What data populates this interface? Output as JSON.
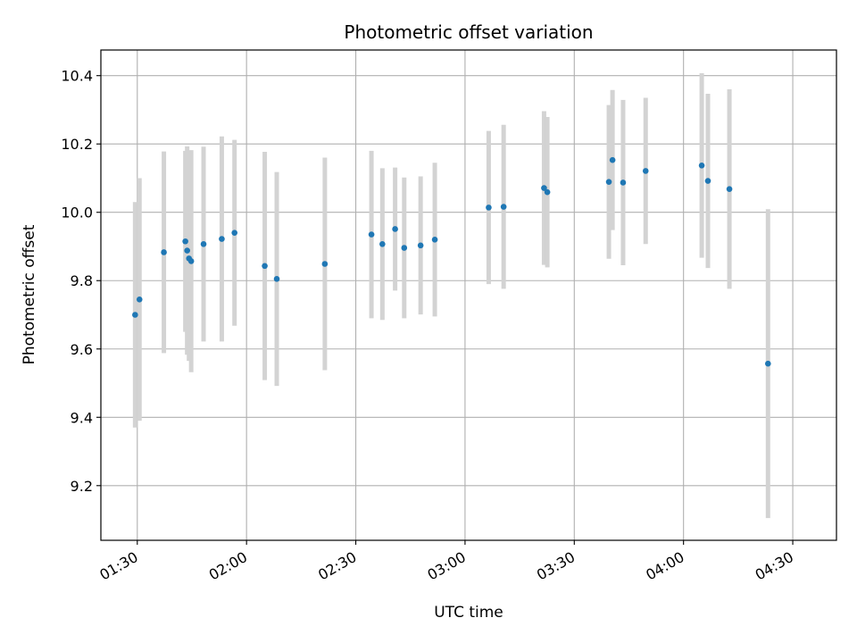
{
  "chart_data": {
    "type": "scatter",
    "title": "Photometric offset variation",
    "xlabel": "UTC time",
    "ylabel": "Photometric offset",
    "x_unit": "minutes since 00:00 UTC",
    "xlim": [
      80,
      282
    ],
    "ylim": [
      9.04,
      10.475
    ],
    "grid": true,
    "x_ticks": [
      {
        "value": 90,
        "label": "01:30"
      },
      {
        "value": 120,
        "label": "02:00"
      },
      {
        "value": 150,
        "label": "02:30"
      },
      {
        "value": 180,
        "label": "03:00"
      },
      {
        "value": 210,
        "label": "03:30"
      },
      {
        "value": 240,
        "label": "04:00"
      },
      {
        "value": 270,
        "label": "04:30"
      }
    ],
    "y_ticks": [
      {
        "value": 9.2,
        "label": "9.2"
      },
      {
        "value": 9.4,
        "label": "9.4"
      },
      {
        "value": 9.6,
        "label": "9.6"
      },
      {
        "value": 9.8,
        "label": "9.8"
      },
      {
        "value": 10.0,
        "label": "10.0"
      },
      {
        "value": 10.2,
        "label": "10.2"
      },
      {
        "value": 10.4,
        "label": "10.4"
      }
    ],
    "colors": {
      "point": "#1f77b4",
      "errorbar": "#d3d3d3",
      "grid": "#b0b0b0"
    },
    "series": [
      {
        "name": "offset",
        "points": [
          {
            "x": 89.4,
            "y": 9.7,
            "err": 0.33
          },
          {
            "x": 90.6,
            "y": 9.745,
            "err": 0.355
          },
          {
            "x": 97.3,
            "y": 9.883,
            "err": 0.295
          },
          {
            "x": 103.2,
            "y": 9.915,
            "err": 0.265
          },
          {
            "x": 103.7,
            "y": 9.888,
            "err": 0.305
          },
          {
            "x": 104.2,
            "y": 9.865,
            "err": 0.3
          },
          {
            "x": 104.8,
            "y": 9.857,
            "err": 0.325
          },
          {
            "x": 108.2,
            "y": 9.907,
            "err": 0.285
          },
          {
            "x": 113.2,
            "y": 9.922,
            "err": 0.3
          },
          {
            "x": 116.7,
            "y": 9.94,
            "err": 0.272
          },
          {
            "x": 125.0,
            "y": 9.843,
            "err": 0.334
          },
          {
            "x": 128.3,
            "y": 9.805,
            "err": 0.313
          },
          {
            "x": 141.5,
            "y": 9.849,
            "err": 0.311
          },
          {
            "x": 154.3,
            "y": 9.935,
            "err": 0.245
          },
          {
            "x": 157.3,
            "y": 9.907,
            "err": 0.222
          },
          {
            "x": 160.8,
            "y": 9.951,
            "err": 0.18
          },
          {
            "x": 163.3,
            "y": 9.896,
            "err": 0.206
          },
          {
            "x": 167.8,
            "y": 9.903,
            "err": 0.202
          },
          {
            "x": 171.7,
            "y": 9.92,
            "err": 0.225
          },
          {
            "x": 186.5,
            "y": 10.014,
            "err": 0.224
          },
          {
            "x": 190.6,
            "y": 10.016,
            "err": 0.24
          },
          {
            "x": 201.7,
            "y": 10.071,
            "err": 0.225
          },
          {
            "x": 202.6,
            "y": 10.059,
            "err": 0.22
          },
          {
            "x": 219.5,
            "y": 10.089,
            "err": 0.225
          },
          {
            "x": 220.5,
            "y": 10.153,
            "err": 0.205
          },
          {
            "x": 223.4,
            "y": 10.087,
            "err": 0.242
          },
          {
            "x": 229.6,
            "y": 10.121,
            "err": 0.214
          },
          {
            "x": 245.0,
            "y": 10.137,
            "err": 0.27
          },
          {
            "x": 246.7,
            "y": 10.092,
            "err": 0.255
          },
          {
            "x": 252.6,
            "y": 10.068,
            "err": 0.292
          },
          {
            "x": 263.2,
            "y": 9.557,
            "err": 0.452
          }
        ]
      }
    ]
  }
}
